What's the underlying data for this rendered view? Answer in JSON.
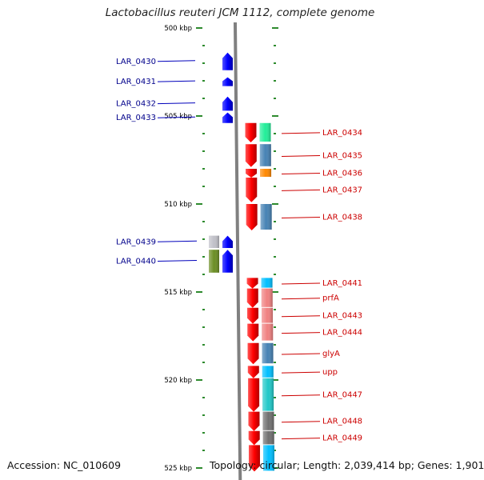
{
  "title": "Lactobacillus reuteri JCM 1112, complete genome",
  "footer": {
    "accession": "Accession: NC_010609",
    "stats": "Topology: circular; Length: 2,039,414 bp; Genes: 1,901"
  },
  "scale": {
    "ticks": [
      {
        "kbp": 500,
        "label": "500 kbp"
      },
      {
        "kbp": 505,
        "label": "505 kbp"
      },
      {
        "kbp": 510,
        "label": "510 kbp"
      },
      {
        "kbp": 515,
        "label": "515 kbp"
      },
      {
        "kbp": 520,
        "label": "520 kbp"
      },
      {
        "kbp": 525,
        "label": "525 kbp"
      }
    ],
    "tick_color": "#2e8b2e"
  },
  "colors": {
    "plus_strand_gene": "#0000ff",
    "minus_strand_gene": "#ff0000",
    "plus_label": "#00008b",
    "minus_label": "#cc0000",
    "axis": "#808080"
  },
  "genes": [
    {
      "name": "LAR_0430",
      "strand": "+",
      "start_kbp": 501.4,
      "end_kbp": 502.4
    },
    {
      "name": "LAR_0431",
      "strand": "+",
      "start_kbp": 502.8,
      "end_kbp": 503.3
    },
    {
      "name": "LAR_0432",
      "strand": "+",
      "start_kbp": 503.9,
      "end_kbp": 504.7
    },
    {
      "name": "LAR_0433",
      "strand": "+",
      "start_kbp": 504.8,
      "end_kbp": 505.4
    },
    {
      "name": "LAR_0434",
      "strand": "-",
      "start_kbp": 505.4,
      "end_kbp": 506.5,
      "cog_color": "#22ee99"
    },
    {
      "name": "LAR_0435",
      "strand": "-",
      "start_kbp": 506.6,
      "end_kbp": 507.9,
      "cog_color": "#4682b4"
    },
    {
      "name": "LAR_0436",
      "strand": "-",
      "start_kbp": 508.0,
      "end_kbp": 508.5,
      "cog_color": "#ff8800"
    },
    {
      "name": "LAR_0437",
      "strand": "-",
      "start_kbp": 508.5,
      "end_kbp": 509.9
    },
    {
      "name": "LAR_0438",
      "strand": "-",
      "start_kbp": 510.0,
      "end_kbp": 511.5,
      "cog_color": "#4682b4"
    },
    {
      "name": "LAR_0439",
      "strand": "+",
      "start_kbp": 511.8,
      "end_kbp": 512.5,
      "cog_color": "#c0c0c8"
    },
    {
      "name": "LAR_0440",
      "strand": "+",
      "start_kbp": 512.6,
      "end_kbp": 513.9,
      "cog_color": "#6b8e23"
    },
    {
      "name": "LAR_0441",
      "strand": "-",
      "start_kbp": 514.2,
      "end_kbp": 514.8,
      "cog_color": "#00bfff"
    },
    {
      "name": "prfA",
      "strand": "-",
      "start_kbp": 514.8,
      "end_kbp": 515.9,
      "cog_color": "#f08080"
    },
    {
      "name": "LAR_0443",
      "strand": "-",
      "start_kbp": 515.9,
      "end_kbp": 516.8,
      "cog_color": "#f08080"
    },
    {
      "name": "LAR_0444",
      "strand": "-",
      "start_kbp": 516.8,
      "end_kbp": 517.8,
      "cog_color": "#f08080"
    },
    {
      "name": "glyA",
      "strand": "-",
      "start_kbp": 517.9,
      "end_kbp": 519.1,
      "cog_color": "#4682b4"
    },
    {
      "name": "upp",
      "strand": "-",
      "start_kbp": 519.2,
      "end_kbp": 519.9,
      "cog_color": "#00bfff"
    },
    {
      "name": "LAR_0447",
      "strand": "-",
      "start_kbp": 519.9,
      "end_kbp": 521.8,
      "cog_color": "#20c8c8"
    },
    {
      "name": "LAR_0448",
      "strand": "-",
      "start_kbp": 521.8,
      "end_kbp": 522.9,
      "cog_color": "#707070"
    },
    {
      "name": "LAR_0449",
      "strand": "-",
      "start_kbp": 522.9,
      "end_kbp": 523.7,
      "cog_color": "#707070"
    },
    {
      "name": "",
      "strand": "-",
      "start_kbp": 523.7,
      "end_kbp": 525.2,
      "cog_color": "#00bfff"
    }
  ]
}
